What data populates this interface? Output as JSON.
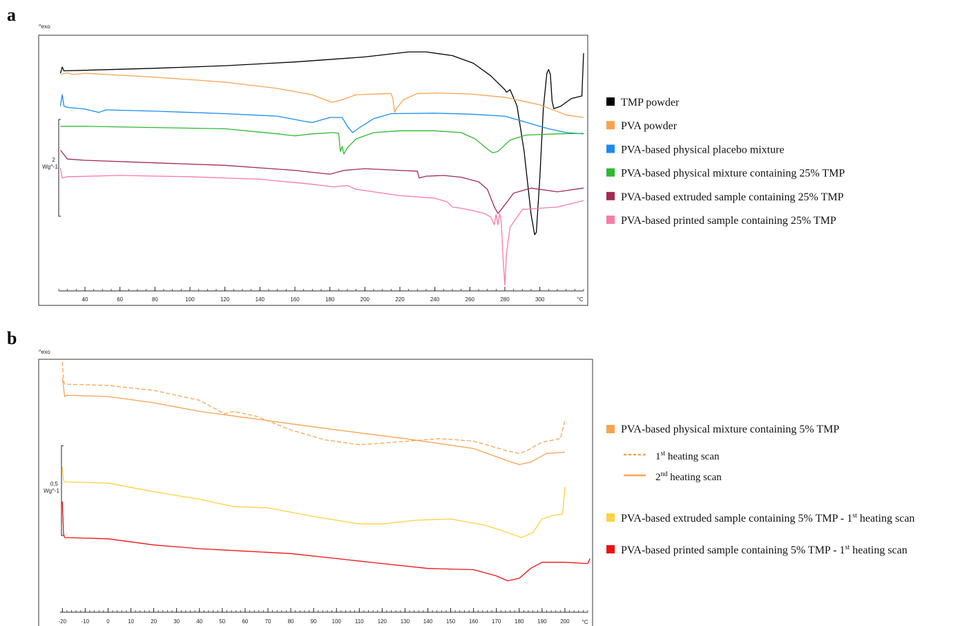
{
  "chart_data": [
    {
      "panel": "a",
      "type": "line",
      "exo_label": "^exo",
      "scale_value": "2",
      "scale_unit": "Wg^-1",
      "x_unit": "°C",
      "x_ticks": [
        40,
        60,
        80,
        100,
        120,
        140,
        160,
        180,
        200,
        220,
        240,
        260,
        280,
        300
      ],
      "xlim": [
        25,
        325
      ],
      "ylim": [
        0,
        10
      ],
      "legend_position": "right",
      "series": [
        {
          "name": "TMP powder",
          "color": "#000000",
          "points": [
            [
              26,
              8.6
            ],
            [
              27,
              8.85
            ],
            [
              28,
              8.7
            ],
            [
              40,
              8.72
            ],
            [
              80,
              8.8
            ],
            [
              120,
              8.9
            ],
            [
              160,
              9.05
            ],
            [
              200,
              9.25
            ],
            [
              225,
              9.45
            ],
            [
              235,
              9.45
            ],
            [
              250,
              9.3
            ],
            [
              262,
              9.0
            ],
            [
              272,
              8.5
            ],
            [
              280,
              7.95
            ],
            [
              281,
              7.85
            ],
            [
              283,
              7.95
            ],
            [
              287,
              7.3
            ],
            [
              291,
              5.5
            ],
            [
              295,
              3.0
            ],
            [
              297,
              2.2
            ],
            [
              298,
              2.3
            ],
            [
              300,
              4.5
            ],
            [
              302,
              7.2
            ],
            [
              304,
              8.6
            ],
            [
              305,
              8.75
            ],
            [
              306,
              8.55
            ],
            [
              307,
              7.5
            ],
            [
              308,
              7.2
            ],
            [
              312,
              7.3
            ],
            [
              318,
              7.6
            ],
            [
              324,
              7.7
            ],
            [
              325,
              9.4
            ]
          ]
        },
        {
          "name": "PVA powder",
          "color": "#f7a350",
          "points": [
            [
              26,
              8.55
            ],
            [
              30,
              8.62
            ],
            [
              33,
              8.55
            ],
            [
              40,
              8.6
            ],
            [
              80,
              8.45
            ],
            [
              120,
              8.25
            ],
            [
              150,
              8.0
            ],
            [
              170,
              7.75
            ],
            [
              181,
              7.45
            ],
            [
              187,
              7.55
            ],
            [
              195,
              7.75
            ],
            [
              215,
              7.8
            ],
            [
              216,
              7.6
            ],
            [
              217,
              7.05
            ],
            [
              218,
              7.2
            ],
            [
              222,
              7.55
            ],
            [
              230,
              7.8
            ],
            [
              240,
              7.82
            ],
            [
              260,
              7.78
            ],
            [
              280,
              7.65
            ],
            [
              300,
              7.35
            ],
            [
              315,
              6.95
            ],
            [
              325,
              6.85
            ]
          ]
        },
        {
          "name": "PVA-based physical placebo mixture",
          "color": "#1a8cf0",
          "points": [
            [
              26,
              7.3
            ],
            [
              27,
              7.75
            ],
            [
              28,
              7.3
            ],
            [
              30,
              7.25
            ],
            [
              40,
              7.18
            ],
            [
              48,
              7.05
            ],
            [
              52,
              7.15
            ],
            [
              80,
              7.1
            ],
            [
              120,
              7.0
            ],
            [
              150,
              6.9
            ],
            [
              165,
              6.7
            ],
            [
              170,
              6.65
            ],
            [
              180,
              6.85
            ],
            [
              187,
              6.85
            ],
            [
              190,
              6.5
            ],
            [
              193,
              6.25
            ],
            [
              197,
              6.45
            ],
            [
              205,
              6.8
            ],
            [
              215,
              7.0
            ],
            [
              240,
              7.02
            ],
            [
              260,
              6.98
            ],
            [
              280,
              6.9
            ],
            [
              295,
              6.6
            ],
            [
              305,
              6.4
            ],
            [
              315,
              6.25
            ],
            [
              325,
              6.2
            ]
          ]
        },
        {
          "name": "PVA-based physical mixture containing 25% TMP",
          "color": "#2eb830",
          "points": [
            [
              26,
              6.5
            ],
            [
              40,
              6.5
            ],
            [
              80,
              6.45
            ],
            [
              120,
              6.4
            ],
            [
              150,
              6.2
            ],
            [
              160,
              6.12
            ],
            [
              170,
              6.2
            ],
            [
              182,
              6.25
            ],
            [
              185,
              6.22
            ],
            [
              186,
              5.5
            ],
            [
              187,
              5.7
            ],
            [
              188,
              5.4
            ],
            [
              190,
              5.65
            ],
            [
              195,
              6.0
            ],
            [
              205,
              6.25
            ],
            [
              220,
              6.32
            ],
            [
              240,
              6.32
            ],
            [
              255,
              6.25
            ],
            [
              263,
              6.0
            ],
            [
              270,
              5.6
            ],
            [
              273,
              5.45
            ],
            [
              276,
              5.5
            ],
            [
              283,
              5.95
            ],
            [
              292,
              6.15
            ],
            [
              310,
              6.2
            ],
            [
              325,
              6.22
            ]
          ]
        },
        {
          "name": "PVA-based extruded sample containing 25% TMP",
          "color": "#a32a50",
          "points": [
            [
              26,
              5.55
            ],
            [
              30,
              5.2
            ],
            [
              40,
              5.15
            ],
            [
              80,
              5.05
            ],
            [
              120,
              4.95
            ],
            [
              160,
              4.75
            ],
            [
              180,
              4.6
            ],
            [
              188,
              4.75
            ],
            [
              200,
              4.82
            ],
            [
              220,
              4.75
            ],
            [
              230,
              4.72
            ],
            [
              231,
              4.45
            ],
            [
              235,
              4.52
            ],
            [
              245,
              4.55
            ],
            [
              255,
              4.48
            ],
            [
              265,
              4.3
            ],
            [
              270,
              4.0
            ],
            [
              274,
              3.3
            ],
            [
              276,
              3.05
            ],
            [
              278,
              3.2
            ],
            [
              285,
              3.85
            ],
            [
              295,
              4.05
            ],
            [
              310,
              3.9
            ],
            [
              325,
              4.05
            ]
          ]
        },
        {
          "name": "PVA-based printed sample containing 25% TMP",
          "color": "#f77ba5",
          "points": [
            [
              26,
              4.85
            ],
            [
              27,
              4.45
            ],
            [
              30,
              4.5
            ],
            [
              60,
              4.55
            ],
            [
              100,
              4.5
            ],
            [
              140,
              4.4
            ],
            [
              170,
              4.2
            ],
            [
              182,
              4.1
            ],
            [
              190,
              4.15
            ],
            [
              195,
              4.0
            ],
            [
              220,
              3.75
            ],
            [
              240,
              3.65
            ],
            [
              247,
              3.5
            ],
            [
              250,
              3.3
            ],
            [
              255,
              3.25
            ],
            [
              262,
              3.15
            ],
            [
              268,
              3.05
            ],
            [
              272,
              2.9
            ],
            [
              274,
              2.6
            ],
            [
              275,
              3.0
            ],
            [
              276,
              2.6
            ],
            [
              277,
              3.05
            ],
            [
              278,
              2.7
            ],
            [
              279,
              1.2
            ],
            [
              280,
              0.2
            ],
            [
              281,
              1.5
            ],
            [
              283,
              2.5
            ],
            [
              290,
              3.2
            ],
            [
              300,
              3.25
            ],
            [
              310,
              3.3
            ],
            [
              325,
              3.55
            ]
          ]
        }
      ]
    },
    {
      "panel": "b",
      "type": "line",
      "exo_label": "^exo",
      "scale_value": "0,5",
      "scale_unit": "Wg^-1",
      "x_unit": "°C",
      "x_ticks": [
        -20,
        -10,
        0,
        10,
        20,
        30,
        40,
        50,
        60,
        70,
        80,
        90,
        100,
        110,
        120,
        130,
        140,
        150,
        160,
        170,
        180,
        190,
        200
      ],
      "xlim": [
        -21,
        210
      ],
      "ylim": [
        0,
        10
      ],
      "legend_position": "right",
      "legend": {
        "header": "PVA-based physical mixture containing 5% TMP",
        "header_color": "#f7a350",
        "sub": [
          {
            "pre": "1",
            "sup": "st",
            "post": " heating scan",
            "style": "dotted",
            "color": "#f7a350"
          },
          {
            "pre": "2",
            "sup": "nd",
            "post": " heating scan",
            "style": "solid",
            "color": "#f7a350"
          }
        ],
        "items": [
          {
            "pre": "PVA-based extruded sample containing 5% TMP - 1",
            "sup": "st",
            "post": " heating scan",
            "color": "#ffd040"
          },
          {
            "pre": "PVA-based printed sample containing 5% TMP - 1",
            "sup": "st",
            "post": " heating scan",
            "color": "#ee1111"
          }
        ]
      },
      "series": [
        {
          "color": "#f7a350",
          "dash": true,
          "points": [
            [
              -20,
              9.95
            ],
            [
              -19.5,
              9.2
            ],
            [
              -19,
              9.05
            ],
            [
              0,
              9.0
            ],
            [
              20,
              8.8
            ],
            [
              40,
              8.4
            ],
            [
              49,
              7.95
            ],
            [
              51,
              7.85
            ],
            [
              55,
              7.95
            ],
            [
              65,
              7.75
            ],
            [
              80,
              7.2
            ],
            [
              95,
              6.8
            ],
            [
              110,
              6.6
            ],
            [
              125,
              6.7
            ],
            [
              145,
              6.85
            ],
            [
              160,
              6.75
            ],
            [
              175,
              6.35
            ],
            [
              180,
              6.25
            ],
            [
              183,
              6.35
            ],
            [
              190,
              6.7
            ],
            [
              198,
              6.85
            ],
            [
              199,
              7.2
            ],
            [
              200,
              7.6
            ]
          ]
        },
        {
          "color": "#f7a350",
          "dash": false,
          "points": [
            [
              -20,
              9.3
            ],
            [
              -19,
              8.55
            ],
            [
              -18,
              8.6
            ],
            [
              0,
              8.55
            ],
            [
              20,
              8.3
            ],
            [
              40,
              7.95
            ],
            [
              60,
              7.7
            ],
            [
              80,
              7.45
            ],
            [
              100,
              7.2
            ],
            [
              130,
              6.85
            ],
            [
              160,
              6.45
            ],
            [
              175,
              5.95
            ],
            [
              180,
              5.8
            ],
            [
              185,
              5.9
            ],
            [
              192,
              6.25
            ],
            [
              200,
              6.3
            ]
          ]
        },
        {
          "color": "#ffd040",
          "dash": false,
          "points": [
            [
              -20,
              5.7
            ],
            [
              -19.5,
              5.15
            ],
            [
              -19,
              5.1
            ],
            [
              0,
              5.05
            ],
            [
              20,
              4.7
            ],
            [
              40,
              4.4
            ],
            [
              55,
              4.1
            ],
            [
              70,
              4.05
            ],
            [
              90,
              3.7
            ],
            [
              110,
              3.4
            ],
            [
              120,
              3.4
            ],
            [
              135,
              3.55
            ],
            [
              150,
              3.6
            ],
            [
              165,
              3.35
            ],
            [
              175,
              3.05
            ],
            [
              181,
              2.85
            ],
            [
              186,
              3.05
            ],
            [
              190,
              3.6
            ],
            [
              195,
              3.75
            ],
            [
              199,
              3.8
            ],
            [
              200,
              4.9
            ]
          ]
        },
        {
          "color": "#ee1111",
          "dash": false,
          "points": [
            [
              -20,
              4.3
            ],
            [
              -19.5,
              3.0
            ],
            [
              -19,
              2.85
            ],
            [
              0,
              2.8
            ],
            [
              20,
              2.55
            ],
            [
              40,
              2.4
            ],
            [
              60,
              2.3
            ],
            [
              80,
              2.2
            ],
            [
              100,
              2.0
            ],
            [
              120,
              1.8
            ],
            [
              140,
              1.6
            ],
            [
              160,
              1.55
            ],
            [
              170,
              1.3
            ],
            [
              175,
              1.1
            ],
            [
              180,
              1.2
            ],
            [
              185,
              1.6
            ],
            [
              190,
              1.85
            ],
            [
              200,
              1.85
            ],
            [
              210,
              1.8
            ],
            [
              211,
              2.0
            ]
          ]
        }
      ]
    }
  ],
  "panel_a_legend": [
    {
      "label": "TMP powder",
      "color": "#000000"
    },
    {
      "label": "PVA powder",
      "color": "#f7a350"
    },
    {
      "label": "PVA-based physical placebo mixture",
      "color": "#1a8cf0"
    },
    {
      "label": "PVA-based physical mixture containing 25% TMP",
      "color": "#2eb830"
    },
    {
      "label": "PVA-based extruded sample containing 25% TMP",
      "color": "#a32a50"
    },
    {
      "label": "PVA-based printed sample containing 25% TMP",
      "color": "#f77ba5"
    }
  ]
}
